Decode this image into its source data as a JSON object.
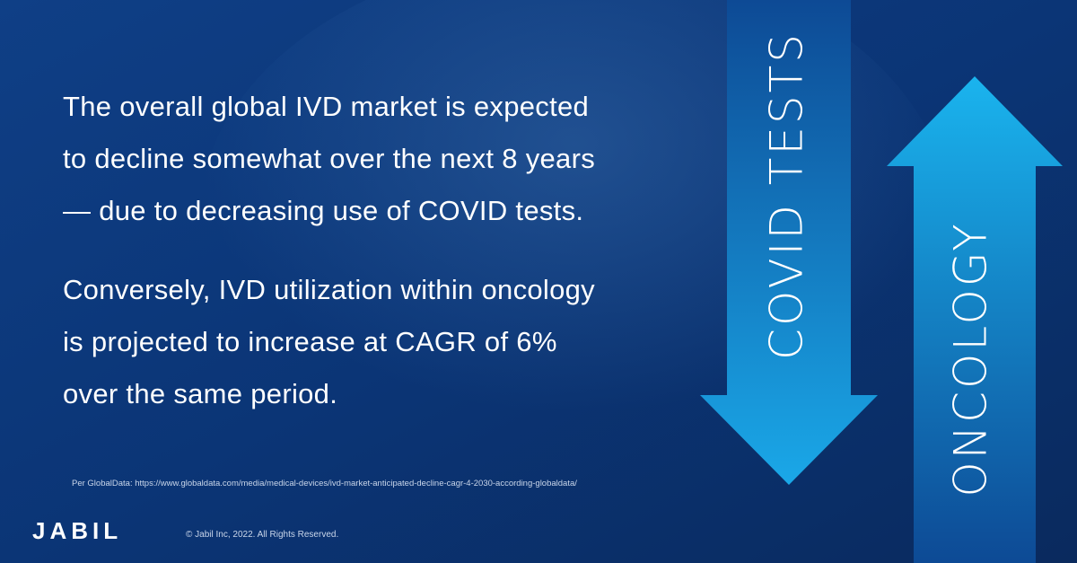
{
  "body": {
    "paragraphs": [
      [
        "The overall global IVD market is expected",
        "to decline somewhat over the next 8 years",
        "— due to decreasing use of COVID tests."
      ],
      [
        "Conversely, IVD utilization within oncology",
        "is projected to increase at CAGR of 6%",
        "over the same period."
      ]
    ],
    "source": "Per GlobalData: https://www.globaldata.com/media/medical-devices/ivd-market-anticipated-decline-cagr-4-2030-according-globaldata/"
  },
  "arrows": {
    "down_label": "COVID TESTS",
    "up_label": "ONCOLOGY"
  },
  "footer": {
    "logo": "JABIL",
    "copyright": "© Jabil Inc, 2022. All Rights Reserved."
  }
}
